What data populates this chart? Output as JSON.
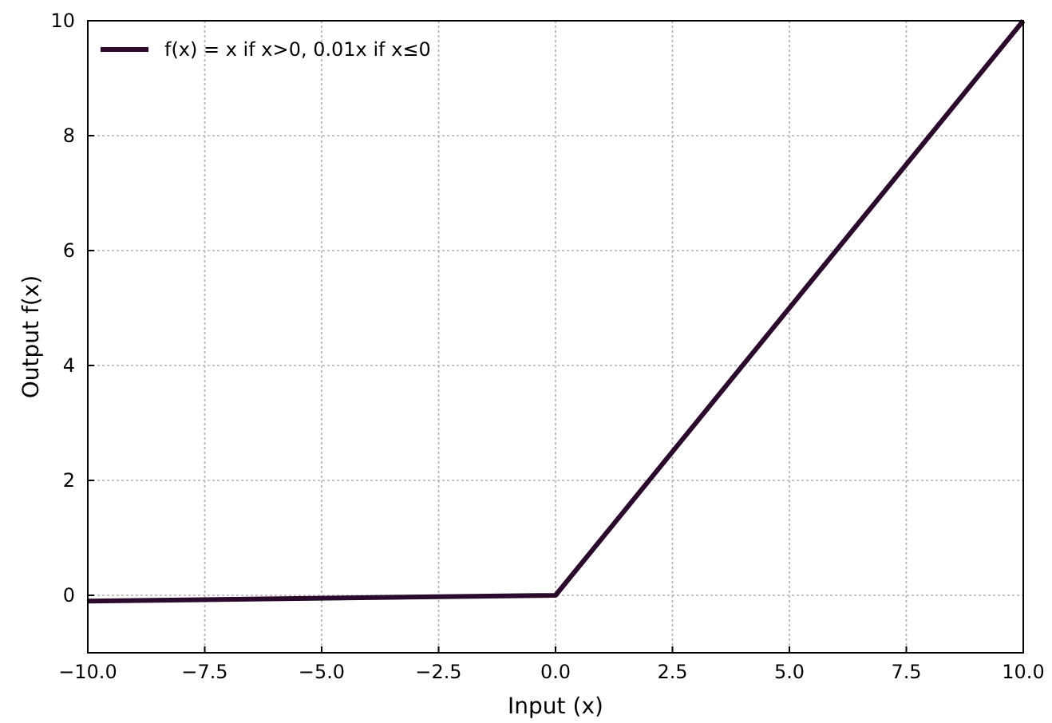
{
  "chart_data": {
    "type": "line",
    "xlabel": "Input (x)",
    "ylabel": "Output f(x)",
    "x": [
      -10,
      0,
      10
    ],
    "series": [
      {
        "name": "f(x) = x if x>0, 0.01x if x≤0",
        "color": "#2b0a2e",
        "values": [
          -0.1,
          0,
          10
        ]
      }
    ],
    "xlim": [
      -10,
      10
    ],
    "ylim": [
      -1,
      10
    ],
    "xticks": [
      {
        "value": -10,
        "label": "−10.0"
      },
      {
        "value": -7.5,
        "label": "−7.5"
      },
      {
        "value": -5,
        "label": "−5.0"
      },
      {
        "value": -2.5,
        "label": "−2.5"
      },
      {
        "value": 0,
        "label": "0.0"
      },
      {
        "value": 2.5,
        "label": "2.5"
      },
      {
        "value": 5,
        "label": "5.0"
      },
      {
        "value": 7.5,
        "label": "7.5"
      },
      {
        "value": 10,
        "label": "10.0"
      }
    ],
    "yticks": [
      0,
      2,
      4,
      6,
      8,
      10
    ],
    "grid": true,
    "legend": "top left",
    "marker": "none",
    "line_style": "solid"
  }
}
